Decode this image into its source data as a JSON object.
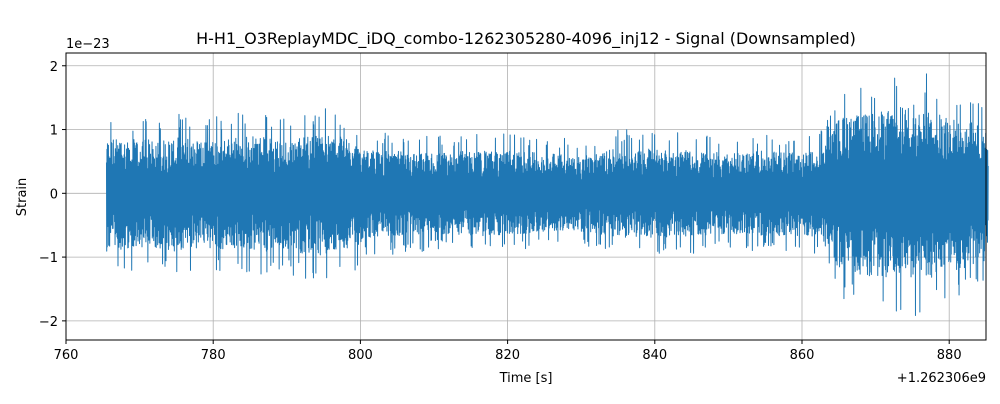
{
  "chart_data": {
    "type": "line",
    "title": "H-H1_O3ReplayMDC_iDQ_combo-1262305280-4096_inj12 - Signal (Downsampled)",
    "xlabel": "Time [s]",
    "ylabel": "Strain",
    "x_offset_label": "+1.262306e9",
    "y_scale_label": "1e−23",
    "xlim": [
      760,
      885
    ],
    "ylim": [
      -2.3,
      2.2
    ],
    "x_ticks": [
      760,
      780,
      800,
      820,
      840,
      860,
      880
    ],
    "x_tick_labels": [
      "760",
      "780",
      "800",
      "820",
      "840",
      "860",
      "880"
    ],
    "y_ticks": [
      -2,
      -1,
      0,
      1,
      2
    ],
    "y_tick_labels": [
      "−2",
      "−1",
      "0",
      "1",
      "2"
    ],
    "grid": true,
    "series": [
      {
        "color": "#1f77b4",
        "x_range": [
          765.5,
          885.3
        ],
        "envelope": {
          "x": [
            765.5,
            770,
            775,
            780,
            785,
            790,
            795,
            799,
            800.5,
            805,
            810,
            815,
            820,
            825,
            830,
            835,
            840,
            845,
            850,
            855,
            860,
            862.5,
            865,
            870,
            875,
            880,
            885.3
          ],
          "upper": [
            1.25,
            1.2,
            1.25,
            1.2,
            1.3,
            1.2,
            1.35,
            1.2,
            0.95,
            0.95,
            0.9,
            0.95,
            0.95,
            0.9,
            0.85,
            1.0,
            1.0,
            0.95,
            0.9,
            0.95,
            0.9,
            0.95,
            1.7,
            1.8,
            2.0,
            1.7,
            1.5
          ],
          "lower": [
            -1.3,
            -1.2,
            -1.3,
            -1.25,
            -1.3,
            -1.3,
            -1.4,
            -1.3,
            -1.0,
            -0.95,
            -0.9,
            -0.95,
            -0.95,
            -0.85,
            -0.85,
            -1.0,
            -1.0,
            -0.95,
            -0.9,
            -0.95,
            -0.95,
            -1.0,
            -1.7,
            -1.9,
            -2.0,
            -1.8,
            -1.5
          ]
        }
      }
    ]
  }
}
